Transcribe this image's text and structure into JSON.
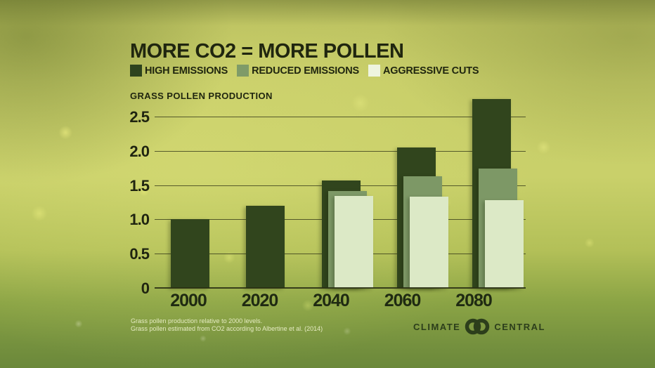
{
  "title": "MORE CO2 = MORE POLLEN",
  "legend": [
    {
      "label": "HIGH EMISSIONS",
      "color": "#2d431e"
    },
    {
      "label": "REDUCED EMISSIONS",
      "color": "#7f9b68"
    },
    {
      "label": "AGGRESSIVE CUTS",
      "color": "#eef4e0"
    }
  ],
  "chart_data": {
    "type": "bar",
    "title": "GRASS POLLEN PRODUCTION",
    "categories": [
      "2000",
      "2020",
      "2040",
      "2060",
      "2080"
    ],
    "series": [
      {
        "name": "HIGH EMISSIONS",
        "color": "#31451d",
        "values": [
          1.0,
          1.2,
          1.57,
          2.05,
          2.76
        ]
      },
      {
        "name": "REDUCED EMISSIONS",
        "color": "#7d9866",
        "values": [
          null,
          null,
          1.41,
          1.63,
          1.74
        ]
      },
      {
        "name": "AGGRESSIVE CUTS",
        "color": "#dce9c6",
        "values": [
          null,
          null,
          1.34,
          1.33,
          1.28
        ]
      }
    ],
    "ylim": [
      0,
      2.5
    ],
    "yticks": [
      {
        "value": 2.5,
        "label": "2.5"
      },
      {
        "value": 2.0,
        "label": "2.0"
      },
      {
        "value": 1.5,
        "label": "1.5"
      },
      {
        "value": 1.0,
        "label": "1.0"
      },
      {
        "value": 0.5,
        "label": "0.5"
      },
      {
        "value": 0,
        "label": "0"
      }
    ],
    "grid": true,
    "legend_position": "top",
    "xlabel": "",
    "ylabel": "GRASS POLLEN PRODUCTION"
  },
  "footnotes": [
    "Grass pollen production relative to 2000 levels.",
    "Grass pollen estimated from CO2 according to Albertine et al. (2014)"
  ],
  "logo": {
    "climate": "CLIMATE",
    "central": "CENTRAL"
  },
  "colors": {
    "text_dark": "#20260f",
    "footnote_text": "#eef2cd",
    "logo_green": "#2c3e1b"
  }
}
